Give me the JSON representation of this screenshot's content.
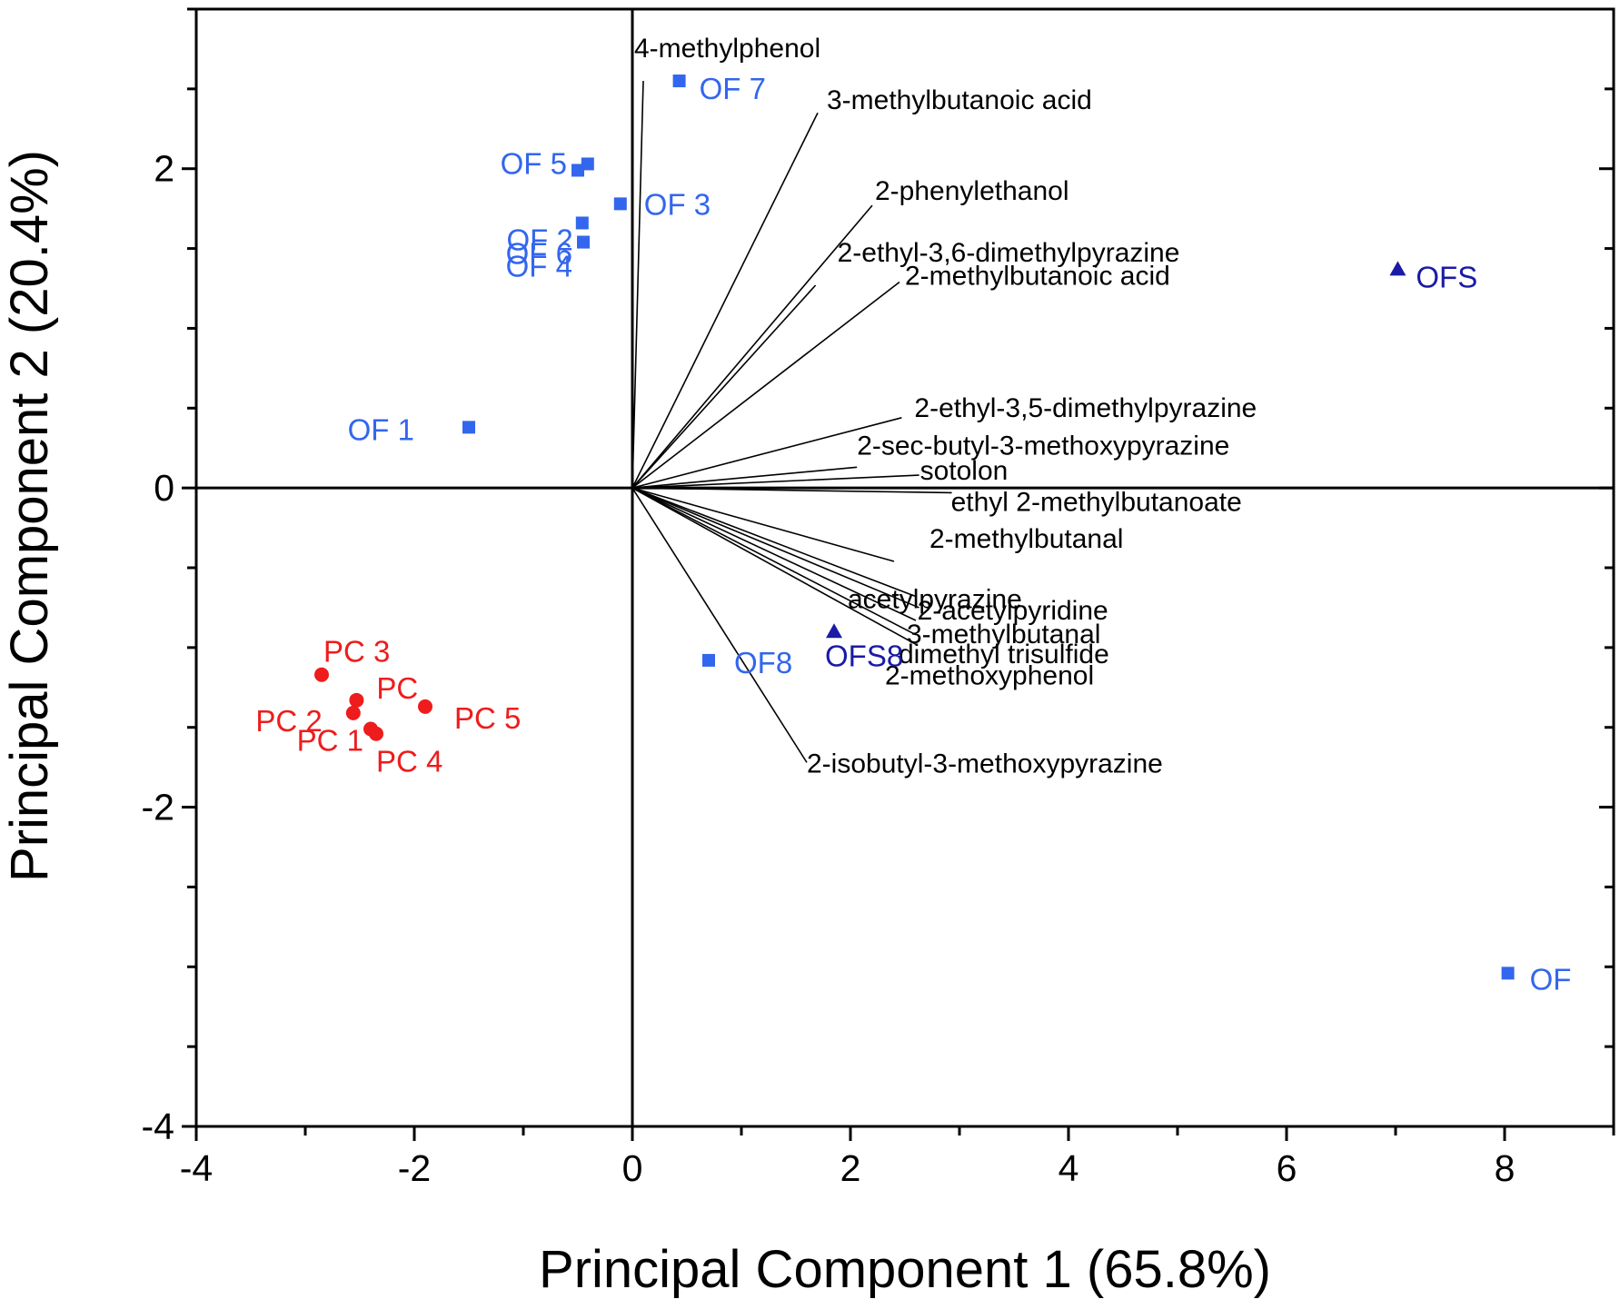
{
  "chart_data": {
    "type": "scatter",
    "xlabel": "Principal Component 1 (65.8%)",
    "ylabel": "Principal Component 2 (20.4%)",
    "xlim": [
      -4,
      9
    ],
    "ylim": [
      -4,
      3
    ],
    "x_ticks": [
      -4,
      -2,
      0,
      2,
      4,
      6,
      8
    ],
    "y_ticks": [
      -4,
      -2,
      0,
      2
    ],
    "grid": false,
    "colors": {
      "OF": "#3366ee",
      "OFS": "#1a1aa6",
      "PC": "#ee1c1c",
      "loading": "#000000"
    },
    "series": [
      {
        "marker": "square",
        "points": [
          {
            "label": "OF 7",
            "x": 0.43,
            "y": 2.55
          },
          {
            "label": "OF 5",
            "x": -0.5,
            "y": 1.99
          },
          {
            "label": "",
            "x": -0.41,
            "y": 2.03
          },
          {
            "label": "OF 2",
            "x": -0.46,
            "y": 1.66
          },
          {
            "label": "OF 3",
            "x": -0.11,
            "y": 1.78
          },
          {
            "label": "OF 6",
            "x": -0.45,
            "y": 1.54
          },
          {
            "label": "OF 4",
            "x": -0.45,
            "y": 1.54
          },
          {
            "label": "OF 1",
            "x": -1.5,
            "y": 0.38
          },
          {
            "label": "OF8",
            "x": 0.7,
            "y": -1.08
          },
          {
            "label": "OF",
            "x": 8.03,
            "y": -3.04
          }
        ]
      },
      {
        "marker": "triangle",
        "points": [
          {
            "label": "OFS",
            "x": 7.02,
            "y": 1.37
          },
          {
            "label": "OFS8",
            "x": 1.85,
            "y": -0.9
          }
        ]
      },
      {
        "marker": "circle",
        "points": [
          {
            "label": "PC 3",
            "x": -2.85,
            "y": -1.17
          },
          {
            "label": "PC",
            "x": -2.53,
            "y": -1.33
          },
          {
            "label": "PC 2",
            "x": -2.56,
            "y": -1.41
          },
          {
            "label": "PC 5",
            "x": -1.9,
            "y": -1.37
          },
          {
            "label": "PC 1",
            "x": -2.4,
            "y": -1.51
          },
          {
            "label": "PC 4",
            "x": -2.35,
            "y": -1.54
          }
        ]
      }
    ],
    "loadings": [
      {
        "label": "4-methylphenol",
        "x": 0.1,
        "y": 2.55
      },
      {
        "label": "3-methylbutanoic acid",
        "x": 1.7,
        "y": 2.35
      },
      {
        "label": "2-phenylethanol",
        "x": 2.2,
        "y": 1.77
      },
      {
        "label": "2-ethyl-3,6-dimethylpyrazine",
        "x": 1.68,
        "y": 1.27
      },
      {
        "label": "2-methylbutanoic acid",
        "x": 2.45,
        "y": 1.29
      },
      {
        "label": "2-ethyl-3,5-dimethylpyrazine",
        "x": 2.47,
        "y": 0.44
      },
      {
        "label": "2-sec-butyl-3-methoxypyrazine",
        "x": 2.06,
        "y": 0.13
      },
      {
        "label": "sotolon",
        "x": 2.63,
        "y": 0.08
      },
      {
        "label": "ethyl 2-methylbutanoate",
        "x": 2.93,
        "y": -0.03
      },
      {
        "label": "2-methylbutanal",
        "x": 2.4,
        "y": -0.46
      },
      {
        "label": "acetylpyrazine",
        "x": 2.6,
        "y": -0.68
      },
      {
        "label": "2-acetylpyridine",
        "x": 2.63,
        "y": -0.75
      },
      {
        "label": "3-methylbutanal",
        "x": 2.6,
        "y": -0.83
      },
      {
        "label": "dimethyl trisulfide",
        "x": 2.6,
        "y": -0.92
      },
      {
        "label": "2-methoxyphenol",
        "x": 2.6,
        "y": -0.98
      },
      {
        "label": "2-isobutyl-3-methoxypyrazine",
        "x": 1.6,
        "y": -1.72
      }
    ]
  }
}
